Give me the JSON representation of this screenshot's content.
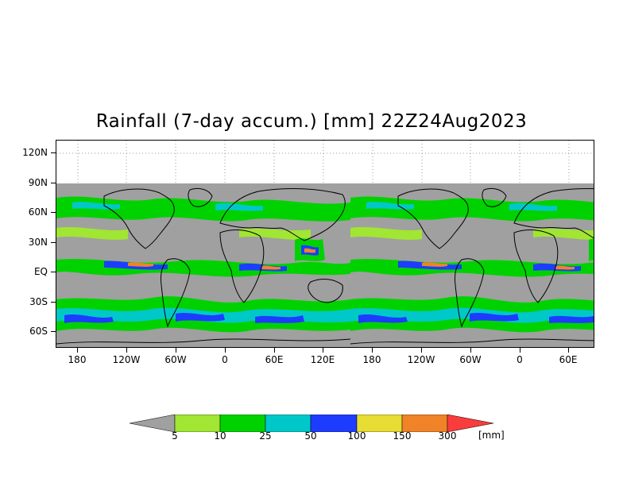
{
  "title": "Rainfall (7-day accum.) [mm] 22Z24Aug2023",
  "y_axis": {
    "ticks": [
      "120N",
      "90N",
      "60N",
      "30N",
      "EQ",
      "30S",
      "60S"
    ]
  },
  "x_axis": {
    "ticks": [
      "180",
      "120W",
      "60W",
      "0",
      "60E",
      "120E",
      "180",
      "120W",
      "60W",
      "0",
      "60E"
    ]
  },
  "legend": {
    "unit": "[mm]",
    "thresholds": [
      "5",
      "10",
      "25",
      "50",
      "100",
      "150",
      "300"
    ],
    "colors": {
      "below": "#a0a0a0",
      "5_10": "#a0e632",
      "10_25": "#00d200",
      "25_50": "#00c8c8",
      "50_100": "#1e3cff",
      "100_150": "#e6dc32",
      "150_300": "#f08228",
      "above": "#fa3c3c"
    }
  },
  "colors": {
    "no_data": "#ffffff",
    "land_border": "#000000",
    "grid": "#9a9a9a"
  }
}
